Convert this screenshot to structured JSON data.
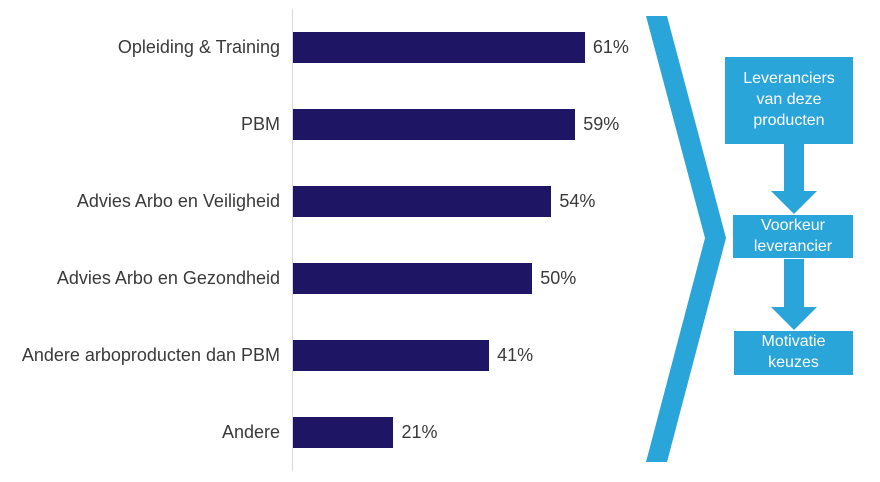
{
  "chart_data": {
    "type": "bar",
    "orientation": "horizontal",
    "title": "",
    "xlabel": "",
    "ylabel": "",
    "categories": [
      "Opleiding & Training",
      "PBM",
      "Advies Arbo en Veiligheid",
      "Advies Arbo en Gezondheid",
      "Andere arboproducten dan PBM",
      "Andere"
    ],
    "values": [
      61,
      59,
      54,
      50,
      41,
      21
    ],
    "value_labels": [
      "61%",
      "59%",
      "54%",
      "50%",
      "41%",
      "21%"
    ],
    "xlim": [
      0,
      65
    ],
    "grid": false,
    "legend": "none",
    "bar_color": "#1e1564",
    "axis_line_color": "#d9d9d9",
    "label_color": "#3a3a3a"
  },
  "flow_diagram": {
    "accent_color": "#29a5da",
    "text_color": "#ffffff",
    "chevron_icon": "right-chevron",
    "arrow_icon": "down-arrow",
    "boxes": [
      {
        "label": "Leveranciers van deze producten"
      },
      {
        "label": "Voorkeur leverancier"
      },
      {
        "label": "Motivatie keuzes"
      }
    ]
  }
}
